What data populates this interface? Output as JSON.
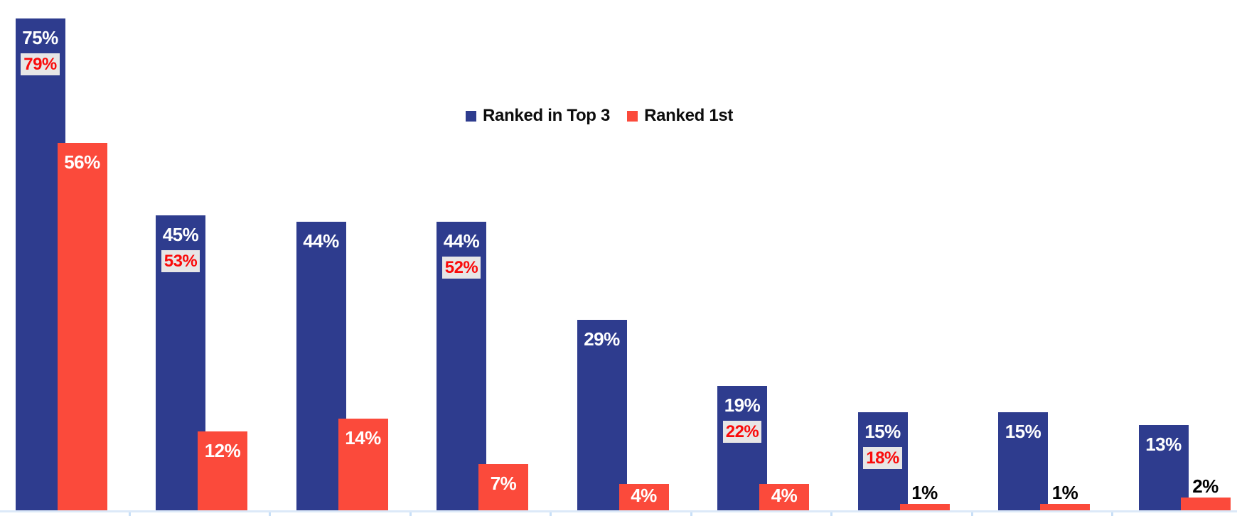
{
  "legend": {
    "items": [
      {
        "label": "Ranked in Top 3",
        "color": "#2e3c8e"
      },
      {
        "label": "Ranked 1st",
        "color": "#fb4a3b"
      }
    ]
  },
  "colors": {
    "blue": "#2e3c8e",
    "red": "#fb4a3b",
    "bar_label_white": "#ffffff",
    "outside_label_black": "#000000",
    "highlight_text": "#fa0a0a",
    "highlight_bg": "#e7e6e6",
    "axis_line": "#dce9f8",
    "tick": "#c8dff7",
    "background": "#ffffff"
  },
  "chart_data": {
    "type": "bar",
    "categories": [
      "",
      "",
      "",
      "",
      "",
      "",
      "",
      "",
      ""
    ],
    "series": [
      {
        "name": "Ranked in Top 3",
        "color": "#2e3c8e",
        "values": [
          75,
          45,
          44,
          44,
          29,
          19,
          15,
          15,
          13
        ],
        "labels": [
          "75%",
          "45%",
          "44%",
          "44%",
          "29%",
          "19%",
          "15%",
          "15%",
          "13%"
        ]
      },
      {
        "name": "Ranked 1st",
        "color": "#fb4a3b",
        "values": [
          56,
          12,
          14,
          7,
          4,
          4,
          1,
          1,
          2
        ],
        "labels": [
          "56%",
          "12%",
          "14%",
          "7%",
          "4%",
          "4%",
          "1%",
          "1%",
          "2%"
        ]
      }
    ],
    "highlight_labels": {
      "description": "red-on-gray labels shown inside the blue bars under the white value",
      "values": [
        "79%",
        "53%",
        null,
        "52%",
        null,
        "22%",
        "18%",
        null,
        null
      ]
    },
    "title": "",
    "xlabel": "",
    "ylabel": "",
    "ylim": [
      0,
      78
    ],
    "y_axis_labels_visible": false,
    "x_axis_labels_visible": false,
    "grid": false,
    "legend_position": "top-center"
  }
}
